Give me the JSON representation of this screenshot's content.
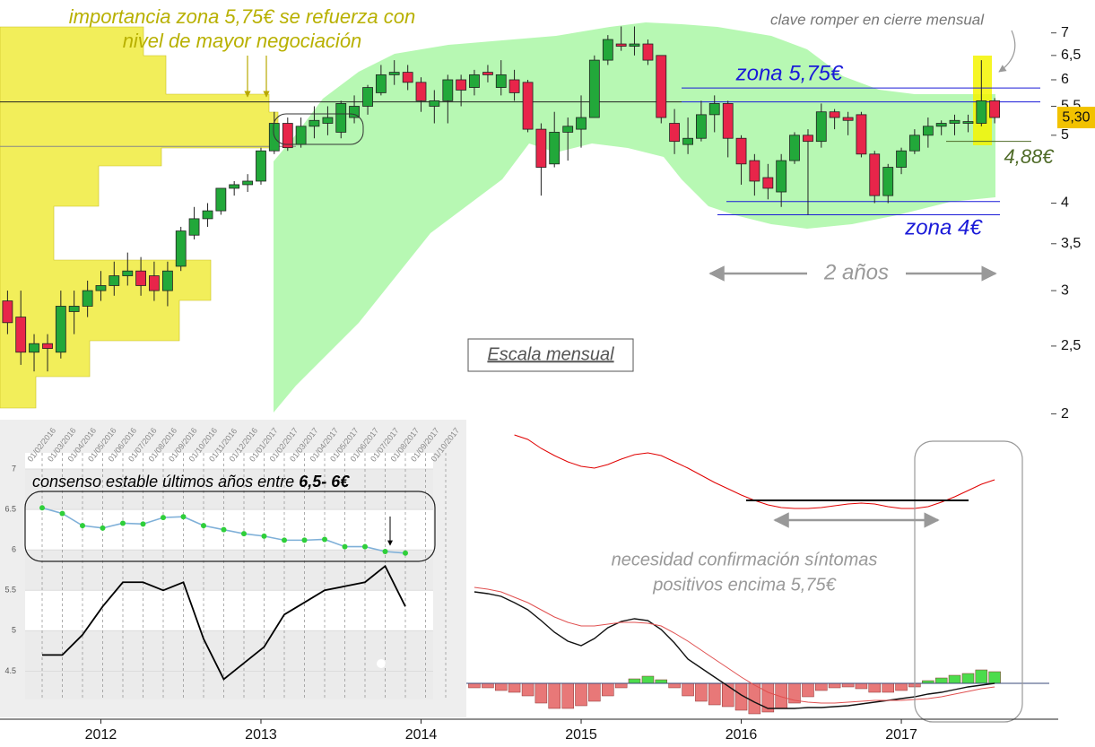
{
  "chart_data": [
    {
      "type": "candlestick",
      "log_y": true,
      "x": [
        2011.417,
        2011.5,
        2011.583,
        2011.667,
        2011.75,
        2011.833,
        2011.917,
        2012,
        2012.083,
        2012.167,
        2012.25,
        2012.333,
        2012.417,
        2012.5,
        2012.583,
        2012.667,
        2012.75,
        2012.833,
        2012.917,
        2013,
        2013.083,
        2013.167,
        2013.25,
        2013.333,
        2013.417,
        2013.5,
        2013.583,
        2013.667,
        2013.75,
        2013.833,
        2013.917,
        2014,
        2014.083,
        2014.167,
        2014.25,
        2014.333,
        2014.417,
        2014.5,
        2014.583,
        2014.667,
        2014.75,
        2014.833,
        2014.917,
        2015,
        2015.083,
        2015.167,
        2015.25,
        2015.333,
        2015.417,
        2015.5,
        2015.583,
        2015.667,
        2015.75,
        2015.833,
        2015.917,
        2016,
        2016.083,
        2016.167,
        2016.25,
        2016.333,
        2016.417,
        2016.5,
        2016.583,
        2016.667,
        2016.75,
        2016.833,
        2016.917,
        2017,
        2017.083,
        2017.167,
        2017.25,
        2017.333,
        2017.417,
        2017.5,
        2017.583
      ],
      "open": [
        2.9,
        2.75,
        2.45,
        2.52,
        2.45,
        2.8,
        2.85,
        3.0,
        3.05,
        3.15,
        3.2,
        3.15,
        3.0,
        3.25,
        3.6,
        3.8,
        3.9,
        4.2,
        4.25,
        4.3,
        4.75,
        5.2,
        4.85,
        5.15,
        5.2,
        5.05,
        5.3,
        5.5,
        5.75,
        6.1,
        6.15,
        5.95,
        5.5,
        5.6,
        6.0,
        5.85,
        6.15,
        5.85,
        6.0,
        5.95,
        5.1,
        4.55,
        5.05,
        5.1,
        5.3,
        6.4,
        6.75,
        6.7,
        6.75,
        6.5,
        5.2,
        4.85,
        4.95,
        5.35,
        5.55,
        4.95,
        4.6,
        4.35,
        4.15,
        4.6,
        5.0,
        4.9,
        5.4,
        5.3,
        5.35,
        4.7,
        4.1,
        4.5,
        4.75,
        5.0,
        5.15,
        5.2,
        5.2,
        5.2,
        5.6
      ],
      "high": [
        3.0,
        3.0,
        2.6,
        2.6,
        3.0,
        3.0,
        3.1,
        3.2,
        3.3,
        3.4,
        3.35,
        3.3,
        3.3,
        3.7,
        3.95,
        4.0,
        4.2,
        4.3,
        4.4,
        4.8,
        5.4,
        5.3,
        5.3,
        5.5,
        5.5,
        5.6,
        5.7,
        5.9,
        6.3,
        6.4,
        6.3,
        6.05,
        5.8,
        6.1,
        6.1,
        6.2,
        6.3,
        6.4,
        6.2,
        6.0,
        5.2,
        5.4,
        5.3,
        5.7,
        6.5,
        6.95,
        7.15,
        7.15,
        6.85,
        6.5,
        5.45,
        5.3,
        5.6,
        5.7,
        5.6,
        5.0,
        4.7,
        4.55,
        4.7,
        5.05,
        5.1,
        5.55,
        5.45,
        5.4,
        5.4,
        4.75,
        4.55,
        4.8,
        5.1,
        5.3,
        5.25,
        5.35,
        5.35,
        6.4,
        5.65
      ],
      "low": [
        2.6,
        2.35,
        2.3,
        2.3,
        2.4,
        2.6,
        2.75,
        2.9,
        2.95,
        3.05,
        2.95,
        2.9,
        2.85,
        3.2,
        3.55,
        3.7,
        3.85,
        4.1,
        4.15,
        4.25,
        4.7,
        4.75,
        4.8,
        4.95,
        5.0,
        4.95,
        5.2,
        5.35,
        5.7,
        5.9,
        5.8,
        5.4,
        5.2,
        5.2,
        5.5,
        5.7,
        5.95,
        5.7,
        5.6,
        5.05,
        4.1,
        4.5,
        4.6,
        4.8,
        5.3,
        6.3,
        6.6,
        6.5,
        6.3,
        5.2,
        4.7,
        4.7,
        4.9,
        5.05,
        4.65,
        4.25,
        4.1,
        4.05,
        3.95,
        4.55,
        3.85,
        4.8,
        5.1,
        5.0,
        4.65,
        4.0,
        4.0,
        4.4,
        4.7,
        4.8,
        5.0,
        5.0,
        5.05,
        5.15,
        5.2
      ],
      "close": [
        2.7,
        2.45,
        2.52,
        2.48,
        2.85,
        2.85,
        3.0,
        3.05,
        3.15,
        3.2,
        3.05,
        3.0,
        3.2,
        3.65,
        3.8,
        3.9,
        4.2,
        4.25,
        4.3,
        4.75,
        5.2,
        4.8,
        5.15,
        5.25,
        5.3,
        5.55,
        5.5,
        5.85,
        6.1,
        6.15,
        5.95,
        5.6,
        5.6,
        6.0,
        5.8,
        6.1,
        6.1,
        6.1,
        5.75,
        5.1,
        4.5,
        5.05,
        5.15,
        5.3,
        6.4,
        6.85,
        6.7,
        6.75,
        6.4,
        5.3,
        4.9,
        4.95,
        5.35,
        5.55,
        4.95,
        4.55,
        4.3,
        4.2,
        4.6,
        5.0,
        4.9,
        5.4,
        5.3,
        5.25,
        4.7,
        4.1,
        4.5,
        4.75,
        5.0,
        5.15,
        5.2,
        5.25,
        5.23,
        5.6,
        5.3
      ],
      "up_color": "#22a83a",
      "down_color": "#e8254a",
      "xlim": [
        2011.37,
        2017.98
      ],
      "xticks": [
        2012,
        2013,
        2014,
        2015,
        2016,
        2017
      ],
      "ylim": [
        1.98,
        7.8
      ],
      "yticks": [
        2,
        {
          "value": 2.5,
          "label": "2,5"
        },
        3,
        {
          "value": 3.5,
          "label": "3,5"
        },
        4,
        5,
        {
          "value": 5.5,
          "label": "5,5"
        },
        6,
        {
          "value": 6.5,
          "label": "6,5"
        },
        7
      ],
      "levels": [
        5.84,
        5.58,
        4.02,
        3.85,
        4.9,
        5.58,
        4.82
      ],
      "last_price": {
        "value": 5.3,
        "label": "5,30"
      },
      "annotations": [
        "importancia zona 5,75€ se refuerza con",
        "nivel de mayor negociación",
        "clave romper en cierre mensual",
        "zona 5,75€",
        "4,88€",
        "zona 4€",
        "2 años",
        "Escala mensual"
      ]
    },
    {
      "type": "line",
      "categories": [
        "01/02/2016",
        "01/03/2016",
        "01/04/2016",
        "01/05/2016",
        "01/06/2016",
        "01/07/2016",
        "01/08/2016",
        "01/09/2016",
        "01/10/2016",
        "01/11/2016",
        "01/12/2016",
        "01/01/2017",
        "01/02/2017",
        "01/03/2017",
        "01/04/2017",
        "01/05/2017",
        "01/06/2017",
        "01/07/2017",
        "01/08/2017",
        "01/09/2017",
        "01/10/2017"
      ],
      "series": [
        {
          "color": "#7fb0d8",
          "marker_color": "#2fcf3a",
          "values": [
            6.52,
            6.45,
            6.3,
            6.27,
            6.33,
            6.32,
            6.4,
            6.41,
            6.3,
            6.25,
            6.2,
            6.17,
            6.12,
            6.12,
            6.13,
            6.04,
            6.04,
            5.98,
            5.96,
            null,
            null
          ]
        },
        {
          "color": "#000000",
          "values": [
            4.7,
            4.7,
            4.95,
            5.3,
            5.6,
            5.6,
            5.5,
            5.6,
            4.9,
            4.4,
            4.6,
            4.8,
            5.2,
            5.35,
            5.5,
            5.55,
            5.6,
            5.8,
            5.3,
            null,
            null
          ]
        }
      ],
      "ylim": [
        4.15,
        7.2
      ],
      "yticks": [
        4.5,
        5,
        5.5,
        6,
        6.5,
        7
      ],
      "grid": true,
      "annotations": [
        "consenso estable últimos años entre ",
        "6,5- 6€"
      ]
    },
    {
      "type": "combo",
      "x": [
        2014.333,
        2014.417,
        2014.5,
        2014.583,
        2014.667,
        2014.75,
        2014.833,
        2014.917,
        2015,
        2015.083,
        2015.167,
        2015.25,
        2015.333,
        2015.417,
        2015.5,
        2015.583,
        2015.667,
        2015.75,
        2015.833,
        2015.917,
        2016,
        2016.083,
        2016.167,
        2016.25,
        2016.333,
        2016.417,
        2016.5,
        2016.583,
        2016.667,
        2016.75,
        2016.833,
        2016.917,
        2017,
        2017.083,
        2017.167,
        2017.25,
        2017.333,
        2017.417,
        2017.5,
        2017.583
      ],
      "xlim": [
        2011.37,
        2017.98
      ],
      "ylim": [
        -0.38,
        2.94
      ],
      "series": [
        {
          "kind": "bar",
          "color": "#4cdc4c",
          "negative_color": "#e87878",
          "values": [
            -0.05,
            -0.05,
            -0.08,
            -0.1,
            -0.14,
            -0.22,
            -0.28,
            -0.28,
            -0.25,
            -0.2,
            -0.14,
            -0.05,
            0.05,
            0.08,
            0.04,
            -0.05,
            -0.14,
            -0.2,
            -0.24,
            -0.26,
            -0.3,
            -0.34,
            -0.32,
            -0.28,
            -0.22,
            -0.15,
            -0.08,
            -0.05,
            -0.04,
            -0.06,
            -0.1,
            -0.1,
            -0.08,
            -0.04,
            0.03,
            0.06,
            0.09,
            0.11,
            0.15,
            0.13
          ]
        },
        {
          "kind": "line",
          "color": "#111111",
          "values": [
            1.02,
            1.0,
            0.97,
            0.9,
            0.82,
            0.7,
            0.57,
            0.47,
            0.42,
            0.5,
            0.62,
            0.69,
            0.72,
            0.7,
            0.6,
            0.45,
            0.27,
            0.17,
            0.07,
            -0.03,
            -0.13,
            -0.21,
            -0.28,
            -0.28,
            -0.28,
            -0.27,
            -0.27,
            -0.26,
            -0.25,
            -0.23,
            -0.21,
            -0.19,
            -0.17,
            -0.15,
            -0.12,
            -0.1,
            -0.07,
            -0.04,
            -0.02,
            0.0
          ]
        },
        {
          "kind": "line",
          "color": "#e05050",
          "values": [
            1.07,
            1.05,
            1.02,
            0.96,
            0.9,
            0.82,
            0.74,
            0.68,
            0.64,
            0.64,
            0.66,
            0.68,
            0.68,
            0.67,
            0.64,
            0.56,
            0.47,
            0.37,
            0.27,
            0.17,
            0.07,
            -0.02,
            -0.1,
            -0.15,
            -0.19,
            -0.21,
            -0.22,
            -0.22,
            -0.21,
            -0.2,
            -0.19,
            -0.19,
            -0.19,
            -0.18,
            -0.17,
            -0.15,
            -0.12,
            -0.09,
            -0.06,
            -0.04
          ]
        },
        {
          "kind": "line",
          "color": "#e00000",
          "values": [
            null,
            null,
            null,
            2.77,
            2.72,
            2.62,
            2.54,
            2.47,
            2.42,
            2.4,
            2.44,
            2.5,
            2.55,
            2.57,
            2.54,
            2.47,
            2.4,
            2.32,
            2.24,
            2.17,
            2.1,
            2.04,
            1.99,
            1.96,
            1.95,
            1.95,
            1.96,
            1.98,
            2.0,
            2.01,
            2.0,
            1.97,
            1.95,
            1.95,
            1.97,
            2.02,
            2.08,
            2.15,
            2.22,
            2.27
          ]
        }
      ],
      "annotations": [
        "necesidad confirmación síntomas",
        "positivos encima 5,75€"
      ]
    }
  ]
}
